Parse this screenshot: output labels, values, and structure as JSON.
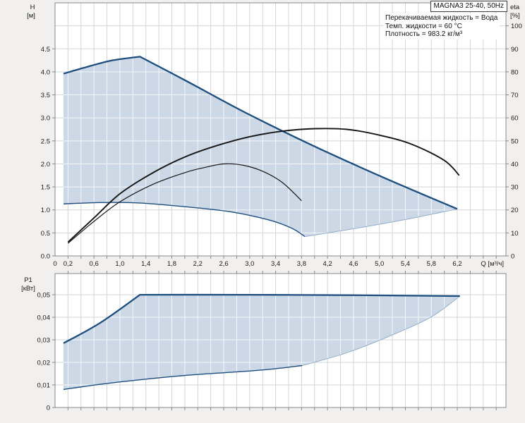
{
  "header": {
    "title": "MAGNA3 25-40, 50Hz",
    "info_lines": [
      "Перекачиваемая жидкость = Вода",
      "Темп. жидкости = 60 °C",
      "Плотность = 983.2 кг/м³"
    ]
  },
  "colors": {
    "page_bg": "#f1f0ee",
    "plot_bg": "#ffffff",
    "grid": "#d3d5d9",
    "grid_on_fill": "#ffffff",
    "frame": "#85898d",
    "fill": "#ccd8e5",
    "curve_blue": "#1d4e7e",
    "bridge_edge": "#93aecb",
    "curve_black": "#161616",
    "text": "#1a1a1a"
  },
  "chart_data": [
    {
      "type": "area",
      "title": "H-Q performance field (control range) with efficiency curves",
      "x_axis": {
        "label": "Q [м³/ч]",
        "min": 0,
        "max": 6.95,
        "grid_step": 0.2,
        "ticks": [
          {
            "v": 0,
            "label": "0"
          },
          {
            "v": 0.2,
            "label": "0,2"
          },
          {
            "v": 0.6,
            "label": "0,6"
          },
          {
            "v": 1.0,
            "label": "1,0"
          },
          {
            "v": 1.4,
            "label": "1,4"
          },
          {
            "v": 1.8,
            "label": "1,8"
          },
          {
            "v": 2.2,
            "label": "2,2"
          },
          {
            "v": 2.6,
            "label": "2,6"
          },
          {
            "v": 3.0,
            "label": "3,0"
          },
          {
            "v": 3.4,
            "label": "3,4"
          },
          {
            "v": 3.8,
            "label": "3,8"
          },
          {
            "v": 4.2,
            "label": "4,2"
          },
          {
            "v": 4.6,
            "label": "4,6"
          },
          {
            "v": 5.0,
            "label": "5,0"
          },
          {
            "v": 5.4,
            "label": "5,4"
          },
          {
            "v": 5.8,
            "label": "5,8"
          },
          {
            "v": 6.2,
            "label": "6,2"
          }
        ]
      },
      "y_axis_left": {
        "label_line1": "H",
        "label_line2": "[м]",
        "min": 0,
        "max": 5.5,
        "grid_step": 0.5,
        "ticks": [
          {
            "v": 0.0,
            "label": "0.0"
          },
          {
            "v": 0.5,
            "label": "0.5"
          },
          {
            "v": 1.0,
            "label": "1.0"
          },
          {
            "v": 1.5,
            "label": "1.5"
          },
          {
            "v": 2.0,
            "label": "2.0"
          },
          {
            "v": 2.5,
            "label": "2.5"
          },
          {
            "v": 3.0,
            "label": "3.0"
          },
          {
            "v": 3.5,
            "label": "3.5"
          },
          {
            "v": 4.0,
            "label": "4.0"
          },
          {
            "v": 4.5,
            "label": "4.5"
          }
        ]
      },
      "y_axis_right": {
        "label_line1": "eta",
        "label_line2": "[%]",
        "min": 0,
        "max": 110,
        "grid_step": 10,
        "ticks": [
          {
            "v": 0,
            "label": "0"
          },
          {
            "v": 10,
            "label": "10"
          },
          {
            "v": 20,
            "label": "20"
          },
          {
            "v": 30,
            "label": "30"
          },
          {
            "v": 40,
            "label": "40"
          },
          {
            "v": 50,
            "label": "50"
          },
          {
            "v": 60,
            "label": "60"
          },
          {
            "v": 70,
            "label": "70"
          },
          {
            "v": 80,
            "label": "80"
          },
          {
            "v": 90,
            "label": "90"
          },
          {
            "v": 100,
            "label": "100"
          }
        ]
      },
      "curves": {
        "max_rise": {
          "axis": "left",
          "points": [
            [
              0.13,
              3.96
            ],
            [
              0.45,
              4.09
            ],
            [
              0.85,
              4.24
            ],
            [
              1.31,
              4.33
            ]
          ]
        },
        "max_fall": {
          "axis": "left",
          "points": [
            [
              1.31,
              4.33
            ],
            [
              2.0,
              3.82
            ],
            [
              2.94,
              3.11
            ],
            [
              4.0,
              2.38
            ],
            [
              5.1,
              1.68
            ],
            [
              6.2,
              1.02
            ]
          ]
        },
        "min_curve": {
          "axis": "left",
          "points": [
            [
              0.13,
              1.13
            ],
            [
              0.7,
              1.16
            ],
            [
              1.3,
              1.15
            ],
            [
              2.0,
              1.07
            ],
            [
              2.7,
              0.96
            ],
            [
              3.3,
              0.78
            ],
            [
              3.65,
              0.6
            ],
            [
              3.85,
              0.42
            ]
          ]
        },
        "bridge": {
          "axis": "left",
          "points": [
            [
              3.85,
              0.42
            ],
            [
              4.6,
              0.59
            ],
            [
              5.4,
              0.79
            ],
            [
              6.2,
              1.02
            ]
          ]
        },
        "eta_total": {
          "axis": "right",
          "points": [
            [
              0.2,
              6
            ],
            [
              0.6,
              16.5
            ],
            [
              1.0,
              27
            ],
            [
              1.5,
              36
            ],
            [
              2.0,
              43
            ],
            [
              2.5,
              48
            ],
            [
              3.0,
              51.8
            ],
            [
              3.5,
              54.2
            ],
            [
              4.0,
              55.3
            ],
            [
              4.5,
              55
            ],
            [
              5.0,
              52.5
            ],
            [
              5.5,
              48.5
            ],
            [
              6.0,
              41.5
            ],
            [
              6.23,
              35
            ]
          ]
        },
        "eta_pump": {
          "axis": "right",
          "points": [
            [
              0.2,
              5.5
            ],
            [
              0.6,
              15
            ],
            [
              1.0,
              23.5
            ],
            [
              1.5,
              31
            ],
            [
              2.0,
              36.2
            ],
            [
              2.3,
              38.4
            ],
            [
              2.6,
              40
            ],
            [
              2.9,
              39.4
            ],
            [
              3.2,
              36.8
            ],
            [
              3.5,
              32
            ],
            [
              3.8,
              24
            ]
          ]
        }
      },
      "region": {
        "forward": [
          "max_rise",
          "max_fall"
        ],
        "backward": [
          "bridge",
          "min_curve"
        ]
      }
    },
    {
      "type": "area",
      "title": "P1 input power field",
      "x_axis": {
        "label": "",
        "min": 0,
        "max": 6.95,
        "grid_step": 0.2,
        "ticks": []
      },
      "y_axis_left": {
        "label_line1": "P1",
        "label_line2": "[кВт]",
        "min": 0,
        "max": 0.0594,
        "grid_step": 0.01,
        "ticks": [
          {
            "v": 0,
            "label": "0"
          },
          {
            "v": 0.01,
            "label": "0,01"
          },
          {
            "v": 0.02,
            "label": "0,02"
          },
          {
            "v": 0.03,
            "label": "0,03"
          },
          {
            "v": 0.04,
            "label": "0,04"
          },
          {
            "v": 0.05,
            "label": "0,05"
          }
        ]
      },
      "curves": {
        "p1_rise": {
          "axis": "left",
          "points": [
            [
              0.13,
              0.0285
            ],
            [
              0.7,
              0.0376
            ],
            [
              1.31,
              0.05
            ]
          ]
        },
        "p1_flat": {
          "axis": "left",
          "points": [
            [
              1.31,
              0.05
            ],
            [
              2.9,
              0.05
            ],
            [
              4.6,
              0.0498
            ],
            [
              6.24,
              0.0494
            ]
          ]
        },
        "p1_min": {
          "axis": "left",
          "points": [
            [
              0.13,
              0.008
            ],
            [
              0.7,
              0.0103
            ],
            [
              1.31,
              0.0123
            ],
            [
              2.0,
              0.0142
            ],
            [
              2.7,
              0.0156
            ],
            [
              3.3,
              0.0169
            ],
            [
              3.81,
              0.0186
            ]
          ]
        },
        "p1_bridge": {
          "axis": "left",
          "points": [
            [
              3.81,
              0.0186
            ],
            [
              4.5,
              0.0243
            ],
            [
              5.2,
              0.0322
            ],
            [
              5.8,
              0.0402
            ],
            [
              6.24,
              0.0494
            ]
          ]
        }
      },
      "region": {
        "forward": [
          "p1_rise",
          "p1_flat"
        ],
        "backward": [
          "p1_bridge",
          "p1_min"
        ]
      }
    }
  ]
}
